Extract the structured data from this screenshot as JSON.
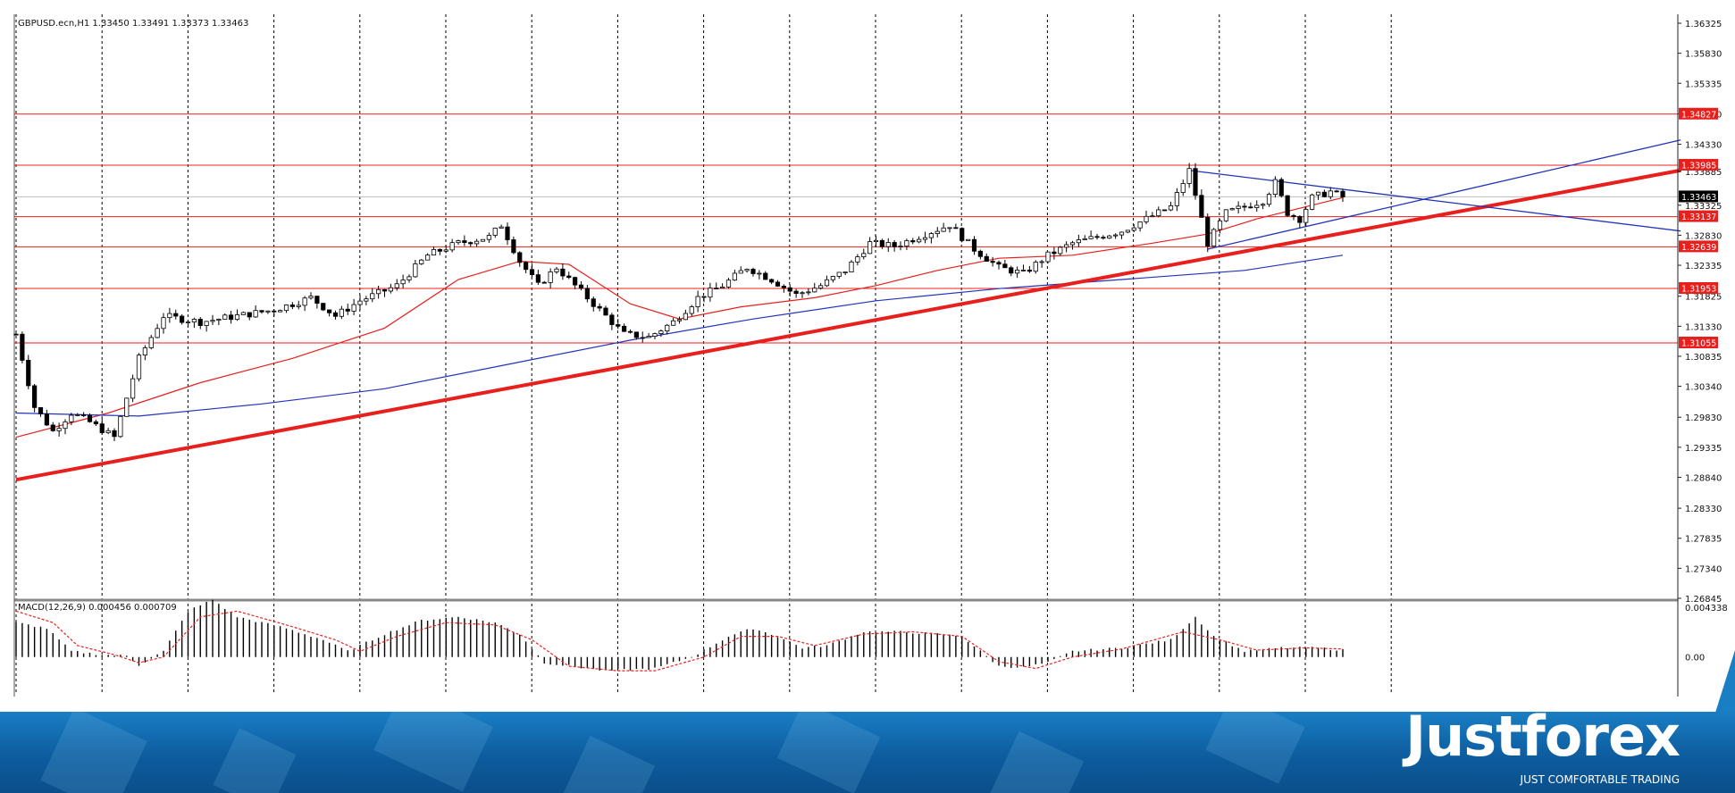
{
  "symbol_header": "GBPUSD.ecn,H1  1.33450 1.33491 1.33373 1.33463",
  "colors": {
    "bull": "#ffffff",
    "bear": "#000000",
    "wick": "#000000",
    "level": "#e8201d",
    "trend": "#e8201d",
    "ma_fast": "#e8201d",
    "ma_slow": "#2233bb",
    "channel": "#2233bb",
    "grid": "#000000",
    "macd_bar": "#000000",
    "macd_signal": "#e8201d",
    "current_price_tag": "#000000",
    "footer_dark": "#0a4f8a",
    "footer_light": "#1a7ec4"
  },
  "chart_data": [
    {
      "type": "candlestick",
      "title": "GBPUSD.ecn,H1",
      "ohlc_last": {
        "open": 1.3345,
        "high": 1.33491,
        "low": 1.33373,
        "close": 1.33463
      },
      "y_ticks": [
        "1.36325",
        "1.35830",
        "1.35335",
        "1.34830",
        "1.34330",
        "1.33885",
        "1.33325",
        "1.32830",
        "1.32335",
        "1.31825",
        "1.31330",
        "1.30835",
        "1.30340",
        "1.29830",
        "1.29335",
        "1.28840",
        "1.28330",
        "1.27835",
        "1.27340",
        "1.26845"
      ],
      "ylim": [
        1.26845,
        1.36325
      ],
      "horizontal_levels": [
        {
          "label": "1.34827",
          "value": 1.34827
        },
        {
          "label": "1.33985",
          "value": 1.33985
        },
        {
          "label": "1.33137",
          "value": 1.33137
        },
        {
          "label": "1.32639",
          "value": 1.32639
        },
        {
          "label": "1.31953",
          "value": 1.31953
        },
        {
          "label": "1.31055",
          "value": 1.31055
        }
      ],
      "current_price": {
        "label": "1.33463",
        "value": 1.33463
      },
      "close_anchors": [
        [
          0,
          1.312
        ],
        [
          3,
          1.3
        ],
        [
          6,
          1.296
        ],
        [
          9,
          1.299
        ],
        [
          12,
          1.2975
        ],
        [
          16,
          1.295
        ],
        [
          20,
          1.308
        ],
        [
          24,
          1.315
        ],
        [
          30,
          1.314
        ],
        [
          36,
          1.315
        ],
        [
          42,
          1.316
        ],
        [
          48,
          1.318
        ],
        [
          52,
          1.315
        ],
        [
          56,
          1.3175
        ],
        [
          62,
          1.32
        ],
        [
          67,
          1.325
        ],
        [
          72,
          1.327
        ],
        [
          77,
          1.328
        ],
        [
          79,
          1.33
        ],
        [
          82,
          1.324
        ],
        [
          85,
          1.32
        ],
        [
          88,
          1.323
        ],
        [
          91,
          1.32
        ],
        [
          95,
          1.316
        ],
        [
          99,
          1.312
        ],
        [
          103,
          1.3115
        ],
        [
          107,
          1.314
        ],
        [
          111,
          1.318
        ],
        [
          115,
          1.32
        ],
        [
          119,
          1.323
        ],
        [
          123,
          1.321
        ],
        [
          127,
          1.3185
        ],
        [
          131,
          1.32
        ],
        [
          135,
          1.3225
        ],
        [
          139,
          1.327
        ],
        [
          143,
          1.3265
        ],
        [
          148,
          1.3285
        ],
        [
          152,
          1.33
        ],
        [
          156,
          1.326
        ],
        [
          160,
          1.323
        ],
        [
          164,
          1.322
        ],
        [
          168,
          1.325
        ],
        [
          172,
          1.327
        ],
        [
          176,
          1.328
        ],
        [
          180,
          1.329
        ],
        [
          184,
          1.331
        ],
        [
          188,
          1.333
        ],
        [
          191,
          1.339
        ],
        [
          194,
          1.327
        ],
        [
          197,
          1.332
        ],
        [
          200,
          1.333
        ],
        [
          203,
          1.334
        ],
        [
          205,
          1.337
        ],
        [
          207,
          1.332
        ],
        [
          209,
          1.331
        ],
        [
          211,
          1.3345
        ],
        [
          214,
          1.3355
        ],
        [
          216,
          1.3346
        ]
      ],
      "candle_count": 217,
      "moving_averages": [
        {
          "kind": "fast",
          "points": [
            [
              0,
              1.295
            ],
            [
              15,
              1.299
            ],
            [
              30,
              1.304
            ],
            [
              45,
              1.308
            ],
            [
              60,
              1.313
            ],
            [
              72,
              1.321
            ],
            [
              82,
              1.324
            ],
            [
              90,
              1.3235
            ],
            [
              100,
              1.317
            ],
            [
              108,
              1.3145
            ],
            [
              118,
              1.3165
            ],
            [
              130,
              1.318
            ],
            [
              140,
              1.32
            ],
            [
              150,
              1.3225
            ],
            [
              160,
              1.3245
            ],
            [
              172,
              1.325
            ],
            [
              185,
              1.327
            ],
            [
              194,
              1.3285
            ],
            [
              202,
              1.331
            ],
            [
              216,
              1.3345
            ]
          ]
        },
        {
          "kind": "slow",
          "points": [
            [
              0,
              1.299
            ],
            [
              20,
              1.2985
            ],
            [
              40,
              1.3005
            ],
            [
              60,
              1.303
            ],
            [
              80,
              1.307
            ],
            [
              100,
              1.311
            ],
            [
              120,
              1.3145
            ],
            [
              140,
              1.3175
            ],
            [
              160,
              1.3195
            ],
            [
              180,
              1.321
            ],
            [
              200,
              1.3225
            ],
            [
              216,
              1.325
            ]
          ]
        }
      ],
      "trendlines": [
        {
          "kind": "main-support",
          "from": [
            0,
            1.288
          ],
          "to": [
            271,
            1.339
          ]
        },
        {
          "kind": "channel-upper",
          "from": [
            191,
            1.339
          ],
          "to": [
            271,
            1.329
          ]
        },
        {
          "kind": "channel-lower",
          "from": [
            194,
            1.326
          ],
          "to": [
            271,
            1.344
          ]
        }
      ]
    },
    {
      "type": "bar",
      "title": "MACD(12,26,9) 0.000456 0.000709",
      "series": [
        {
          "name": "MACD",
          "anchors": [
            [
              0,
              0.003
            ],
            [
              5,
              0.0025
            ],
            [
              9,
              0.0005
            ],
            [
              14,
              0.0002
            ],
            [
              18,
              0.0001
            ],
            [
              20,
              -0.0007
            ],
            [
              24,
              0.0005
            ],
            [
              28,
              0.004
            ],
            [
              32,
              0.005
            ],
            [
              36,
              0.0035
            ],
            [
              44,
              0.0025
            ],
            [
              50,
              0.0015
            ],
            [
              54,
              0.0005
            ],
            [
              60,
              0.002
            ],
            [
              66,
              0.0032
            ],
            [
              72,
              0.0035
            ],
            [
              78,
              0.003
            ],
            [
              82,
              0.002
            ],
            [
              86,
              -0.0005
            ],
            [
              96,
              -0.0012
            ],
            [
              104,
              -0.001
            ],
            [
              110,
              0.0
            ],
            [
              116,
              0.0018
            ],
            [
              120,
              0.0025
            ],
            [
              124,
              0.0018
            ],
            [
              128,
              0.0008
            ],
            [
              132,
              0.001
            ],
            [
              138,
              0.0022
            ],
            [
              144,
              0.0022
            ],
            [
              150,
              0.002
            ],
            [
              154,
              0.0018
            ],
            [
              160,
              -0.0008
            ],
            [
              164,
              -0.0009
            ],
            [
              168,
              -0.0005
            ],
            [
              172,
              0.0005
            ],
            [
              180,
              0.0008
            ],
            [
              188,
              0.0015
            ],
            [
              192,
              0.0035
            ],
            [
              195,
              0.0018
            ],
            [
              200,
              0.0005
            ],
            [
              206,
              0.0008
            ],
            [
              212,
              0.0008
            ],
            [
              216,
              0.0006
            ]
          ]
        },
        {
          "name": "Signal",
          "anchors": [
            [
              0,
              0.004
            ],
            [
              6,
              0.003
            ],
            [
              10,
              0.001
            ],
            [
              16,
              0.0002
            ],
            [
              20,
              -0.0005
            ],
            [
              24,
              0.0
            ],
            [
              30,
              0.0035
            ],
            [
              36,
              0.004
            ],
            [
              44,
              0.0028
            ],
            [
              52,
              0.0015
            ],
            [
              56,
              0.0005
            ],
            [
              62,
              0.0018
            ],
            [
              70,
              0.003
            ],
            [
              78,
              0.0028
            ],
            [
              84,
              0.0015
            ],
            [
              90,
              -0.0008
            ],
            [
              98,
              -0.0012
            ],
            [
              104,
              -0.0012
            ],
            [
              112,
              0.0
            ],
            [
              118,
              0.0018
            ],
            [
              124,
              0.0018
            ],
            [
              130,
              0.001
            ],
            [
              138,
              0.002
            ],
            [
              146,
              0.0022
            ],
            [
              154,
              0.0018
            ],
            [
              160,
              -0.0004
            ],
            [
              166,
              -0.001
            ],
            [
              172,
              0.0
            ],
            [
              180,
              0.0007
            ],
            [
              190,
              0.0022
            ],
            [
              196,
              0.0015
            ],
            [
              202,
              0.0006
            ],
            [
              210,
              0.0008
            ],
            [
              216,
              0.0007
            ]
          ]
        }
      ],
      "y_ticks": [
        "0.004338",
        "0.00"
      ],
      "ylim": [
        -0.0015,
        0.004338
      ]
    }
  ],
  "branding": {
    "logo": "Justforex",
    "tagline": "JUST COMFORTABLE TRADING"
  }
}
